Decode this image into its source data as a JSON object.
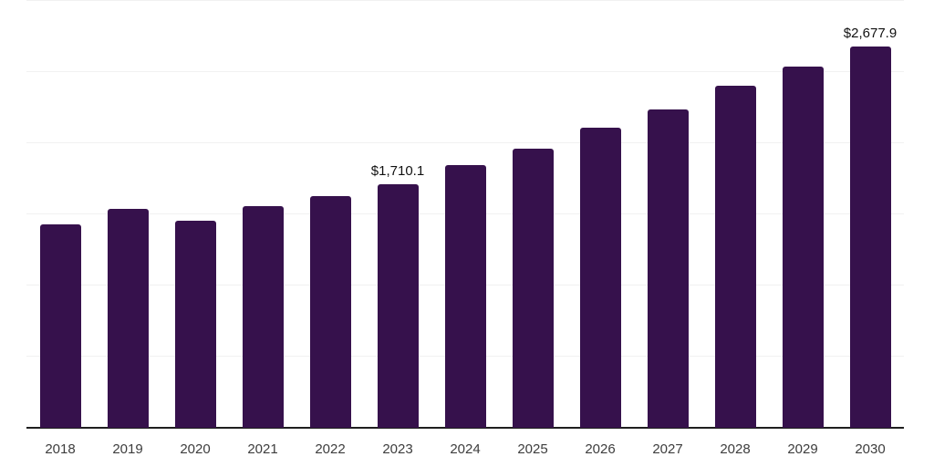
{
  "chart_data": {
    "type": "bar",
    "title": "",
    "xlabel": "",
    "ylabel": "",
    "categories": [
      "2018",
      "2019",
      "2020",
      "2021",
      "2022",
      "2023",
      "2024",
      "2025",
      "2026",
      "2027",
      "2028",
      "2029",
      "2030"
    ],
    "values": [
      1433,
      1540,
      1458,
      1560,
      1626,
      1710.1,
      1844,
      1965,
      2107,
      2236,
      2402,
      2538,
      2677.9
    ],
    "annotations": {
      "2023": "$1,710.1",
      "2030": "$2,677.9"
    },
    "ylim": [
      0,
      3000
    ],
    "gridline_step": 500,
    "grid": "horizontal",
    "legend": "none",
    "colors": {
      "bar": "#36114C",
      "gridline": "#F1F1F1",
      "axis": "#1F1F1F",
      "tick_label": "#3D3D3D",
      "annotation": "#111111"
    }
  }
}
